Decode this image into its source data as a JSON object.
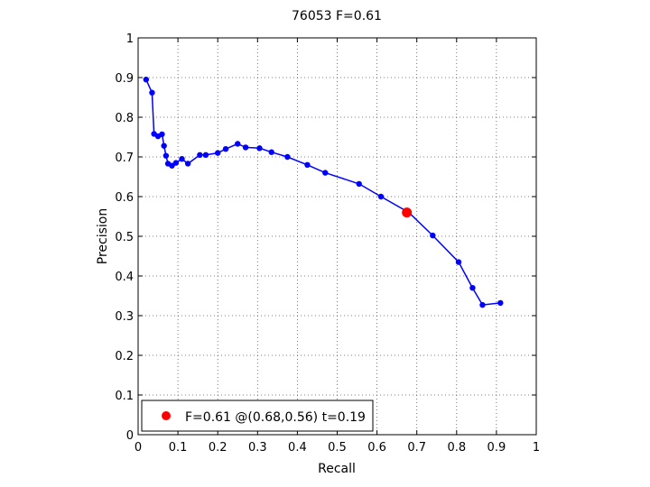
{
  "chart_data": {
    "type": "line",
    "title": "76053 F=0.61",
    "xlabel": "Recall",
    "ylabel": "Precision",
    "xlim": [
      0,
      1
    ],
    "ylim": [
      0,
      1
    ],
    "xticks": [
      0,
      0.1,
      0.2,
      0.3,
      0.4,
      0.5,
      0.6,
      0.7,
      0.8,
      0.9,
      1
    ],
    "yticks": [
      0,
      0.1,
      0.2,
      0.3,
      0.4,
      0.5,
      0.6,
      0.7,
      0.8,
      0.9,
      1
    ],
    "xtick_labels": [
      "0",
      "0.1",
      "0.2",
      "0.3",
      "0.4",
      "0.5",
      "0.6",
      "0.7",
      "0.8",
      "0.9",
      "1"
    ],
    "ytick_labels": [
      "0",
      "0.1",
      "0.2",
      "0.3",
      "0.4",
      "0.5",
      "0.6",
      "0.7",
      "0.8",
      "0.9",
      "1"
    ],
    "grid": true,
    "grid_style": "dotted",
    "legend_position": "bottom-left",
    "series": [
      {
        "color": "#0000ff",
        "marker": "dot",
        "x": [
          0.02,
          0.035,
          0.04,
          0.05,
          0.06,
          0.065,
          0.07,
          0.075,
          0.085,
          0.095,
          0.11,
          0.125,
          0.155,
          0.17,
          0.2,
          0.22,
          0.25,
          0.27,
          0.305,
          0.335,
          0.375,
          0.425,
          0.47,
          0.555,
          0.61,
          0.68,
          0.74,
          0.805,
          0.84,
          0.865,
          0.91
        ],
        "y": [
          0.895,
          0.862,
          0.758,
          0.752,
          0.757,
          0.728,
          0.703,
          0.683,
          0.678,
          0.685,
          0.695,
          0.683,
          0.705,
          0.705,
          0.71,
          0.72,
          0.733,
          0.724,
          0.722,
          0.712,
          0.7,
          0.68,
          0.66,
          0.632,
          0.6,
          0.56,
          0.502,
          0.435,
          0.37,
          0.327,
          0.332
        ]
      }
    ],
    "highlight_point": {
      "x": 0.675,
      "y": 0.56,
      "color": "#ff0000",
      "label": "F=0.61 @(0.68,0.56) t=0.19"
    }
  }
}
